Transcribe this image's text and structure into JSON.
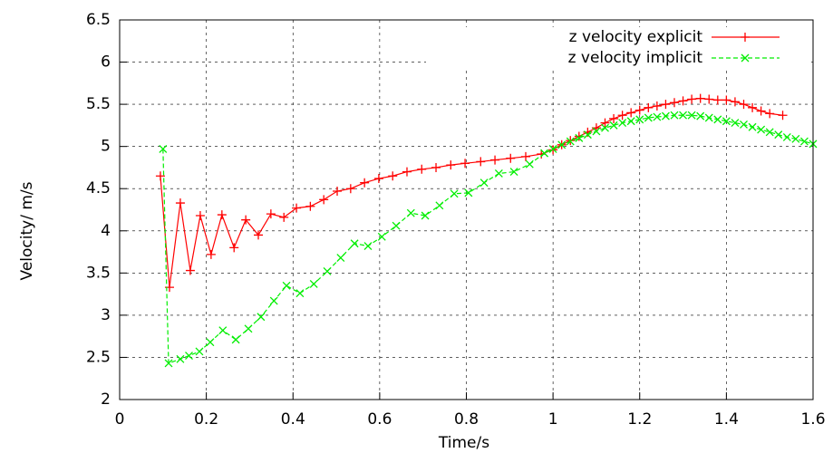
{
  "chart_data": {
    "type": "line",
    "xlabel": "Time/s",
    "ylabel": "Velocity/ m/s",
    "xlim": [
      0,
      1.6
    ],
    "xticks": [
      0,
      0.2,
      0.4,
      0.6,
      0.8,
      1,
      1.2,
      1.4,
      1.6
    ],
    "ylim": [
      2,
      6.5
    ],
    "yticks": [
      2,
      2.5,
      3,
      3.5,
      4,
      4.5,
      5,
      5.5,
      6,
      6.5
    ],
    "grid": true,
    "legend": "top-right",
    "series": [
      {
        "name": "z velocity explicit",
        "color": "#ff0000",
        "marker": "plus",
        "dashed": false,
        "x": [
          0.094,
          0.115,
          0.14,
          0.163,
          0.186,
          0.211,
          0.236,
          0.264,
          0.291,
          0.32,
          0.349,
          0.379,
          0.408,
          0.44,
          0.471,
          0.502,
          0.533,
          0.565,
          0.598,
          0.63,
          0.663,
          0.697,
          0.73,
          0.764,
          0.797,
          0.833,
          0.866,
          0.902,
          0.937,
          0.973,
          1.0,
          1.02,
          1.04,
          1.06,
          1.08,
          1.1,
          1.12,
          1.14,
          1.16,
          1.18,
          1.2,
          1.22,
          1.24,
          1.26,
          1.28,
          1.3,
          1.32,
          1.34,
          1.36,
          1.38,
          1.4,
          1.42,
          1.44,
          1.46,
          1.48,
          1.5,
          1.53
        ],
        "values": [
          4.65,
          3.33,
          4.33,
          3.53,
          4.18,
          3.72,
          4.19,
          3.8,
          4.13,
          3.95,
          4.2,
          4.16,
          4.27,
          4.29,
          4.37,
          4.47,
          4.5,
          4.57,
          4.62,
          4.65,
          4.7,
          4.73,
          4.75,
          4.78,
          4.8,
          4.82,
          4.84,
          4.86,
          4.88,
          4.91,
          4.96,
          5.02,
          5.07,
          5.12,
          5.17,
          5.22,
          5.28,
          5.33,
          5.37,
          5.4,
          5.43,
          5.46,
          5.48,
          5.5,
          5.52,
          5.54,
          5.56,
          5.57,
          5.56,
          5.55,
          5.55,
          5.53,
          5.5,
          5.46,
          5.42,
          5.39,
          5.37
        ]
      },
      {
        "name": "z velocity implicit",
        "color": "#00ee00",
        "marker": "cross",
        "dashed": true,
        "x": [
          0.1,
          0.113,
          0.14,
          0.16,
          0.184,
          0.209,
          0.238,
          0.268,
          0.297,
          0.326,
          0.356,
          0.385,
          0.416,
          0.448,
          0.479,
          0.51,
          0.542,
          0.573,
          0.605,
          0.638,
          0.672,
          0.705,
          0.738,
          0.772,
          0.805,
          0.841,
          0.875,
          0.91,
          0.946,
          0.98,
          1.0,
          1.02,
          1.04,
          1.06,
          1.08,
          1.1,
          1.12,
          1.14,
          1.16,
          1.18,
          1.2,
          1.22,
          1.24,
          1.26,
          1.28,
          1.3,
          1.32,
          1.34,
          1.36,
          1.38,
          1.4,
          1.42,
          1.44,
          1.46,
          1.48,
          1.5,
          1.52,
          1.54,
          1.56,
          1.58,
          1.6
        ],
        "values": [
          4.97,
          2.43,
          2.48,
          2.52,
          2.57,
          2.68,
          2.82,
          2.71,
          2.84,
          2.98,
          3.17,
          3.35,
          3.26,
          3.37,
          3.52,
          3.68,
          3.85,
          3.82,
          3.93,
          4.06,
          4.21,
          4.18,
          4.3,
          4.44,
          4.45,
          4.57,
          4.68,
          4.7,
          4.79,
          4.92,
          4.97,
          5.02,
          5.06,
          5.1,
          5.14,
          5.18,
          5.22,
          5.25,
          5.28,
          5.3,
          5.32,
          5.34,
          5.35,
          5.36,
          5.37,
          5.37,
          5.37,
          5.36,
          5.34,
          5.32,
          5.3,
          5.28,
          5.26,
          5.23,
          5.2,
          5.17,
          5.14,
          5.11,
          5.09,
          5.06,
          5.03
        ]
      }
    ]
  }
}
